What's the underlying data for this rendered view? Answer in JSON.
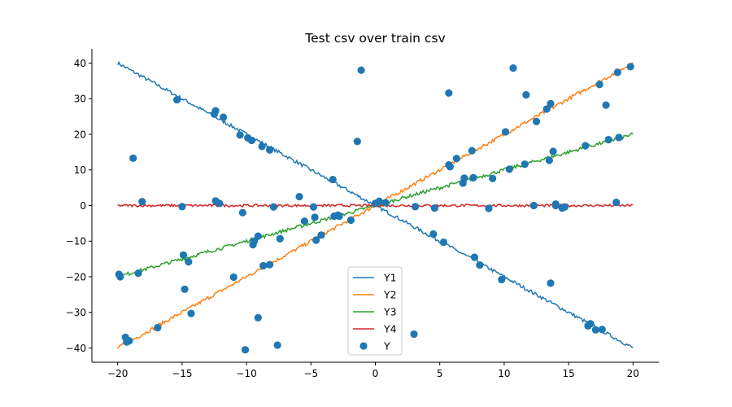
{
  "chart_data": {
    "type": "line",
    "title": "Test csv over train csv",
    "xlabel": "",
    "ylabel": "",
    "xlim": [
      -22,
      22
    ],
    "ylim": [
      -44,
      44
    ],
    "xticks": [
      -20,
      -15,
      -10,
      -5,
      0,
      5,
      10,
      15,
      20
    ],
    "yticks": [
      -40,
      -30,
      -20,
      -10,
      0,
      10,
      20,
      30,
      40
    ],
    "grid": false,
    "legend_position": "lower-center",
    "spines": [
      "left",
      "bottom"
    ],
    "series": [
      {
        "name": "Y1",
        "kind": "line",
        "color": "#1f77b4",
        "x": [
          -20,
          -16,
          -12,
          -8,
          -4,
          0,
          4,
          8,
          12,
          16,
          20
        ],
        "values": [
          40,
          32,
          24,
          16,
          8,
          0,
          -8,
          -16,
          -24,
          -32,
          -40
        ]
      },
      {
        "name": "Y2",
        "kind": "line",
        "color": "#ff7f0e",
        "x": [
          -20,
          -16,
          -12,
          -8,
          -4,
          0,
          4,
          8,
          12,
          16,
          20
        ],
        "values": [
          -40,
          -32,
          -24,
          -16,
          -8,
          0,
          8,
          16,
          24,
          32,
          40
        ]
      },
      {
        "name": "Y3",
        "kind": "line",
        "color": "#2ca02c",
        "x": [
          -20,
          -16,
          -12,
          -8,
          -4,
          0,
          4,
          8,
          12,
          16,
          20
        ],
        "values": [
          -20,
          -16,
          -12,
          -8,
          -4,
          0,
          4,
          8,
          12,
          16,
          20
        ]
      },
      {
        "name": "Y4",
        "kind": "line",
        "color": "#d62728",
        "x": [
          -20,
          -16,
          -12,
          -8,
          -4,
          0,
          4,
          8,
          12,
          16,
          20
        ],
        "values": [
          0,
          0,
          0,
          0,
          0,
          0,
          0,
          0,
          0,
          0,
          0
        ]
      },
      {
        "name": "Y",
        "kind": "scatter",
        "color": "#1f77b4",
        "points": [
          [
            -19.9,
            -19.3
          ],
          [
            -19.8,
            -20.0
          ],
          [
            -19.4,
            -37.0
          ],
          [
            -19.3,
            -38.3
          ],
          [
            -19.1,
            -38.0
          ],
          [
            -18.8,
            13.3
          ],
          [
            -18.4,
            -19.0
          ],
          [
            -18.1,
            1.1
          ],
          [
            -16.9,
            -34.3
          ],
          [
            -15.4,
            29.7
          ],
          [
            -15.0,
            -0.3
          ],
          [
            -14.9,
            -13.9
          ],
          [
            -14.8,
            -23.5
          ],
          [
            -14.5,
            -15.8
          ],
          [
            -14.3,
            -30.3
          ],
          [
            -12.5,
            25.7
          ],
          [
            -12.4,
            26.6
          ],
          [
            -12.4,
            1.3
          ],
          [
            -12.1,
            0.6
          ],
          [
            -11.8,
            24.8
          ],
          [
            -11.0,
            -20.1
          ],
          [
            -10.5,
            19.8
          ],
          [
            -10.3,
            -2.0
          ],
          [
            -10.1,
            -40.5
          ],
          [
            -9.9,
            19.0
          ],
          [
            -9.6,
            18.3
          ],
          [
            -9.5,
            -11.0
          ],
          [
            -9.4,
            -10.0
          ],
          [
            -9.1,
            -8.6
          ],
          [
            -9.1,
            -31.5
          ],
          [
            -8.8,
            16.6
          ],
          [
            -8.7,
            -16.9
          ],
          [
            -8.2,
            15.6
          ],
          [
            -8.2,
            -16.6
          ],
          [
            -7.9,
            -0.4
          ],
          [
            -7.6,
            -39.2
          ],
          [
            -7.4,
            -9.3
          ],
          [
            -5.9,
            2.5
          ],
          [
            -5.5,
            -4.4
          ],
          [
            -4.8,
            -0.4
          ],
          [
            -4.7,
            -3.3
          ],
          [
            -4.6,
            -9.7
          ],
          [
            -4.2,
            -8.3
          ],
          [
            -3.3,
            7.3
          ],
          [
            -3.2,
            -3.0
          ],
          [
            -2.9,
            -2.7
          ],
          [
            -2.8,
            -3.0
          ],
          [
            -1.9,
            -4.1
          ],
          [
            -1.4,
            18.0
          ],
          [
            -1.1,
            38.0
          ],
          [
            0.0,
            0.6
          ],
          [
            0.3,
            1.2
          ],
          [
            0.8,
            0.8
          ],
          [
            3.0,
            -36.1
          ],
          [
            3.1,
            -0.3
          ],
          [
            4.5,
            -8.0
          ],
          [
            4.6,
            -0.7
          ],
          [
            5.3,
            -10.3
          ],
          [
            5.7,
            31.6
          ],
          [
            5.7,
            11.4
          ],
          [
            5.8,
            10.9
          ],
          [
            6.3,
            13.2
          ],
          [
            6.8,
            6.3
          ],
          [
            6.9,
            7.7
          ],
          [
            7.5,
            15.4
          ],
          [
            7.6,
            7.8
          ],
          [
            7.7,
            -14.5
          ],
          [
            8.1,
            -16.7
          ],
          [
            8.8,
            -0.8
          ],
          [
            9.1,
            7.6
          ],
          [
            9.8,
            -20.8
          ],
          [
            10.1,
            20.7
          ],
          [
            10.4,
            10.2
          ],
          [
            10.7,
            38.6
          ],
          [
            11.6,
            11.6
          ],
          [
            11.7,
            31.1
          ],
          [
            12.3,
            0.0
          ],
          [
            12.5,
            23.6
          ],
          [
            13.3,
            27.1
          ],
          [
            13.5,
            12.7
          ],
          [
            13.6,
            -21.8
          ],
          [
            13.6,
            28.6
          ],
          [
            13.8,
            15.2
          ],
          [
            14.0,
            0.4
          ],
          [
            14.0,
            0.0
          ],
          [
            14.5,
            -0.7
          ],
          [
            14.7,
            -0.4
          ],
          [
            16.3,
            16.8
          ],
          [
            16.5,
            -33.8
          ],
          [
            16.7,
            -33.2
          ],
          [
            17.1,
            -34.9
          ],
          [
            17.4,
            34.0
          ],
          [
            17.6,
            -34.8
          ],
          [
            17.9,
            28.2
          ],
          [
            18.1,
            18.5
          ],
          [
            18.7,
            0.9
          ],
          [
            18.8,
            37.4
          ],
          [
            18.9,
            19.1
          ],
          [
            19.8,
            39.0
          ]
        ]
      }
    ]
  }
}
